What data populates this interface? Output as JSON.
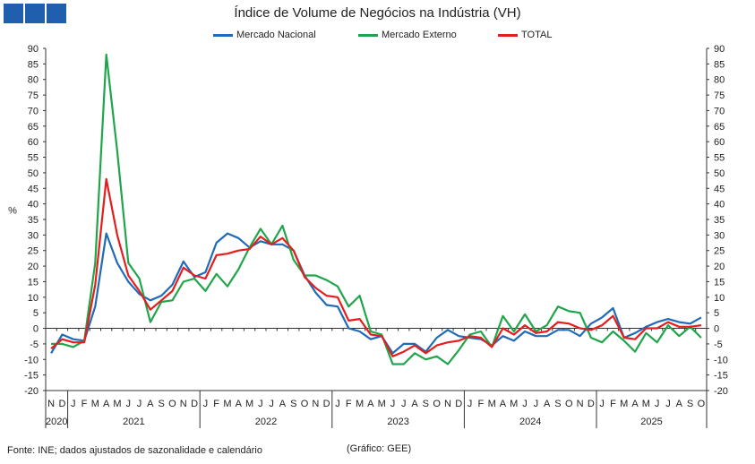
{
  "logo": {
    "color": "#1f5fae",
    "icon": "three-blue-squares-logo"
  },
  "chart_data": {
    "type": "line",
    "title": "Índice de Volume de Negócios na Indústria (VH)",
    "ylabel": "%",
    "ylim": [
      -20,
      90
    ],
    "yticks": [
      -20,
      -15,
      -10,
      -5,
      0,
      5,
      10,
      15,
      20,
      25,
      30,
      35,
      40,
      45,
      50,
      55,
      60,
      65,
      70,
      75,
      80,
      85,
      90
    ],
    "month_labels": [
      "N",
      "D",
      "J",
      "F",
      "M",
      "A",
      "M",
      "J",
      "J",
      "A",
      "S",
      "O",
      "N",
      "D",
      "J",
      "F",
      "M",
      "A",
      "M",
      "J",
      "J",
      "A",
      "S",
      "O",
      "N",
      "D",
      "J",
      "F",
      "M",
      "A",
      "M",
      "J",
      "J",
      "A",
      "S",
      "O",
      "N",
      "D",
      "J",
      "F",
      "M",
      "A",
      "M",
      "J",
      "J",
      "A",
      "S",
      "O",
      "N",
      "D",
      "J",
      "F",
      "M",
      "A",
      "M",
      "J",
      "J",
      "A",
      "S",
      "O"
    ],
    "year_groups": [
      {
        "label": "2020",
        "months": 2
      },
      {
        "label": "2021",
        "months": 12
      },
      {
        "label": "2022",
        "months": 12
      },
      {
        "label": "2023",
        "months": 12
      },
      {
        "label": "2024",
        "months": 12
      },
      {
        "label": "2025",
        "months": 10
      }
    ],
    "series": [
      {
        "name": "Mercado Nacional",
        "color": "#1f6bb7",
        "values": [
          -8,
          -2,
          -3.5,
          -4,
          7,
          30.5,
          21,
          15,
          11,
          9,
          10.5,
          14,
          21.5,
          16.5,
          18,
          27.5,
          30.5,
          29,
          26,
          28,
          27,
          27,
          25,
          17,
          11.5,
          7.5,
          7,
          0,
          -1,
          -3.5,
          -2.5,
          -8,
          -5,
          -5,
          -7.5,
          -3,
          -0.5,
          -2.5,
          -3,
          -3.5,
          -5.5,
          -2.5,
          -4,
          -1,
          -2.5,
          -2.5,
          -0.5,
          -0.5,
          -2.5,
          1.5,
          3.5,
          6.5,
          -3,
          -1.5,
          0.5,
          2,
          3,
          2,
          1.5,
          3.5
        ]
      },
      {
        "name": "Mercado Externo",
        "color": "#1fa64a",
        "values": [
          -5,
          -5,
          -6,
          -4,
          21,
          88,
          57,
          21,
          16,
          2,
          8.5,
          9,
          15,
          16,
          12,
          17.5,
          13.5,
          19,
          26,
          32,
          27,
          33,
          22,
          17,
          17,
          15.5,
          13.5,
          7,
          10.5,
          -1,
          -2,
          -11.5,
          -11.5,
          -8,
          -10,
          -9,
          -11.5,
          -7,
          -2,
          -1,
          -6,
          4,
          -1,
          4.5,
          -1,
          1,
          7,
          5.5,
          5,
          -3,
          -4.5,
          -1,
          -4,
          -7.5,
          -1.5,
          -4.5,
          1,
          -2.5,
          0.5,
          -3
        ]
      },
      {
        "name": "TOTAL",
        "color": "#e41e1e",
        "values": [
          -6.5,
          -3.5,
          -4.5,
          -4.5,
          14,
          48,
          30,
          17,
          12,
          6,
          9,
          12,
          19.5,
          17,
          16,
          23.5,
          24,
          25,
          25.5,
          29.5,
          27,
          29,
          25,
          16.5,
          13,
          10.5,
          10,
          2.5,
          3,
          -2,
          -2.5,
          -9,
          -7.5,
          -5.5,
          -8,
          -5.5,
          -4.5,
          -4,
          -2.5,
          -3,
          -6,
          0,
          -2,
          1,
          -1.5,
          -1,
          2,
          1.5,
          0,
          -0.5,
          1,
          4,
          -3,
          -3.5,
          0,
          0,
          2,
          0.5,
          0.5,
          1
        ]
      }
    ]
  },
  "footer": {
    "source": "Fonte: INE; dados ajustados de sazonalidade  e calendário",
    "graph_credit": "(Gráfico: GEE)"
  }
}
